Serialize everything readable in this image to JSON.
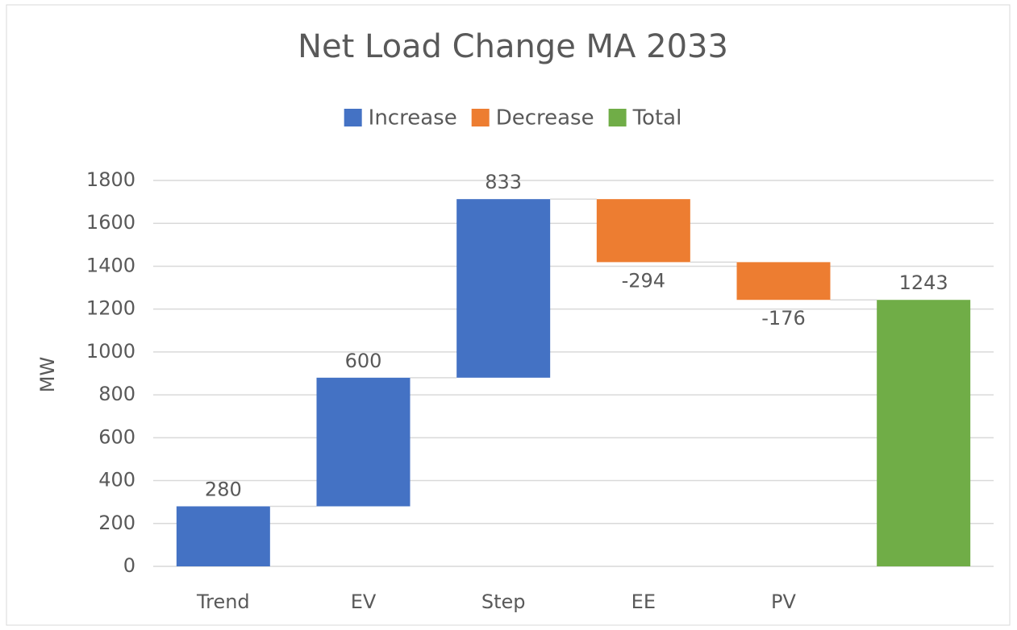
{
  "chart_data": {
    "type": "waterfall",
    "title": "Net Load Change MA 2033",
    "y_label": "MW",
    "categories": [
      "Trend",
      "EV",
      "Step",
      "EE",
      "PV",
      null
    ],
    "values": [
      280,
      600,
      833,
      -294,
      -176,
      1243
    ],
    "is_total": [
      false,
      false,
      false,
      false,
      false,
      true
    ],
    "legend": [
      {
        "name": "Increase",
        "color": "#4472c4"
      },
      {
        "name": "Decrease",
        "color": "#ed7d31"
      },
      {
        "name": "Total",
        "color": "#70ad47"
      }
    ],
    "legend_position": "top",
    "ylim": [
      0,
      1800
    ],
    "yticks": [
      0,
      200,
      400,
      600,
      800,
      1000,
      1200,
      1400,
      1600,
      1800
    ],
    "grid": true
  }
}
